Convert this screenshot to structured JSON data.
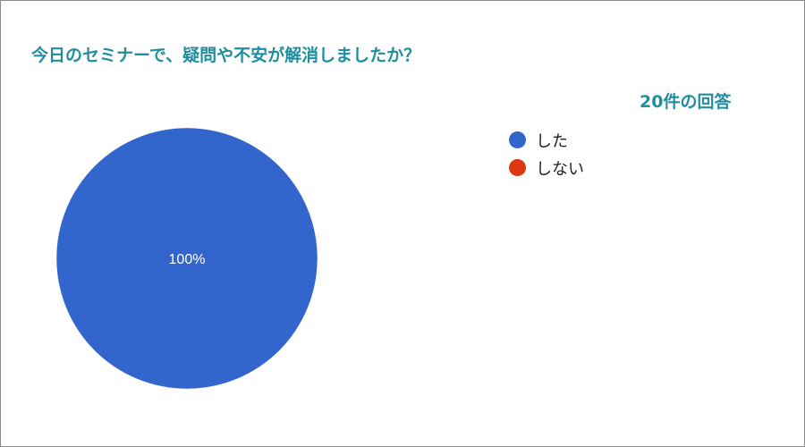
{
  "chart_data": {
    "type": "pie",
    "title": "今日のセミナーで、疑問や不安が解消しましたか？",
    "subtitle": "20件の回答",
    "categories": [
      "した",
      "しない"
    ],
    "values": [
      20,
      0
    ],
    "percent_labels": [
      "100%",
      ""
    ],
    "colors": [
      "#3366cc",
      "#dc3912"
    ],
    "legend_position": "right"
  }
}
